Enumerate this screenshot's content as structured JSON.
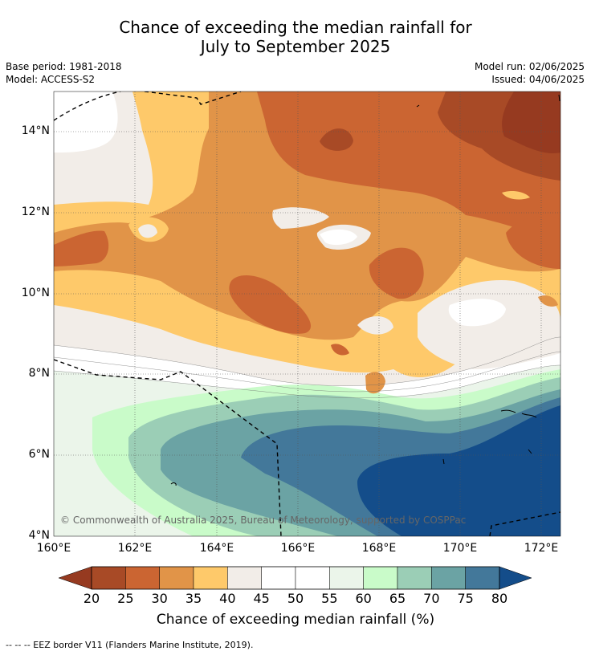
{
  "title_line1": "Chance of exceeding the median rainfall for",
  "title_line2": "July to September 2025",
  "base_period": "Base period: 1981-2018",
  "model": "Model: ACCESS-S2",
  "model_run": "Model run: 02/06/2025",
  "issued": "Issued: 04/06/2025",
  "copyright": "© Commonwealth of Australia 2025, Bureau of Meteorology, supported by COSPPac",
  "lat_ticks": [
    "14°N",
    "12°N",
    "10°N",
    "8°N",
    "6°N",
    "4°N"
  ],
  "lon_ticks": [
    "160°E",
    "162°E",
    "164°E",
    "166°E",
    "168°E",
    "170°E",
    "172°E"
  ],
  "colorbar": {
    "ticks": [
      "20",
      "25",
      "30",
      "35",
      "40",
      "45",
      "50",
      "55",
      "60",
      "65",
      "70",
      "75",
      "80"
    ],
    "title": "Chance of exceeding median rainfall (%)",
    "colors": [
      "#a84a26",
      "#cb6532",
      "#e19448",
      "#fec96a",
      "#f2ede8",
      "#ffffff",
      "#ffffff",
      "#ebf5ea",
      "#c9fbc9",
      "#9bceb6",
      "#6ba3a4",
      "#43789a",
      "#144d8a"
    ],
    "extend_low_color": "#963a20",
    "extend_high_color": "#144d8a"
  },
  "footer_legend": "--  --  -- EEZ border V11 (Flanders Marine Institute, 2019)."
}
